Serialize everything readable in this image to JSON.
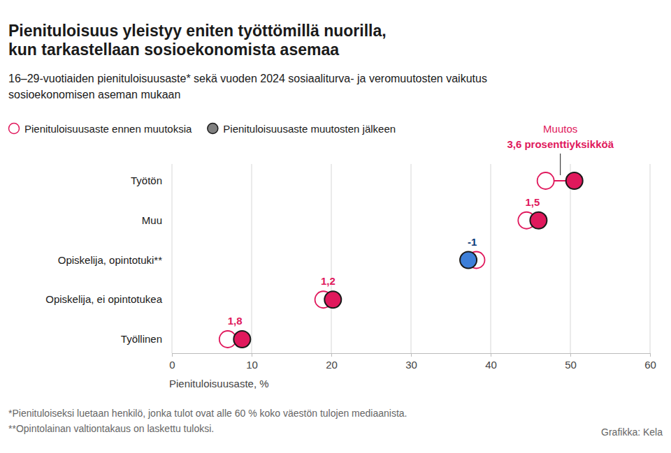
{
  "chart_data": {
    "type": "dot",
    "title": "Pienituloisuus yleistyy eniten työttömillä nuorilla,\nkun tarkastellaan sosioekonomista asemaa",
    "subtitle": "16–29-vuotiaiden pienituloisuusaste* sekä vuoden 2024 sosiaaliturva- ja veromuutosten vaikutus\nsosioekonomisen aseman mukaan",
    "categories": [
      "Työtön",
      "Muu",
      "Opiskelija, opintotuki**",
      "Opiskelija, ei opintotukea",
      "Työllinen"
    ],
    "series": [
      {
        "name": "Pienituloisuusaste ennen muutoksia",
        "color": "#e0185c",
        "marker": "open-circle",
        "values": [
          46.9,
          44.5,
          38.2,
          19.0,
          7.0
        ]
      },
      {
        "name": "Pienituloisuusaste muutosten jälkeen",
        "color": "#e0185c",
        "marker": "circle",
        "colors": [
          "#e0185c",
          "#e0185c",
          "#3d7fd9",
          "#e0185c",
          "#e0185c"
        ],
        "values": [
          50.5,
          46.0,
          37.2,
          20.2,
          8.8
        ]
      }
    ],
    "changes": {
      "title": "Muutos",
      "values": [
        3.6,
        1.5,
        -1,
        1.2,
        1.8
      ],
      "value_labels": [
        "3,6 prosenttiyksikköä",
        "1,5",
        "-1",
        "1,2",
        "1,8"
      ]
    },
    "orientation": "horizontal",
    "data_labels": true,
    "xlabel": "Pienituloisuusaste, %",
    "xlim": [
      0,
      60
    ],
    "xticks": [
      0,
      10,
      20,
      30,
      40,
      50,
      60
    ],
    "grid": true,
    "legend": "top-left",
    "footnotes": [
      "*Pienituloiseksi luetaan henkilö, jonka tulot ovat alle 60 % koko väestön tulojen mediaanista.",
      "**Opintolainan valtiontakaus on laskettu tuloksi."
    ],
    "credit": "Grafikka: Kela"
  }
}
